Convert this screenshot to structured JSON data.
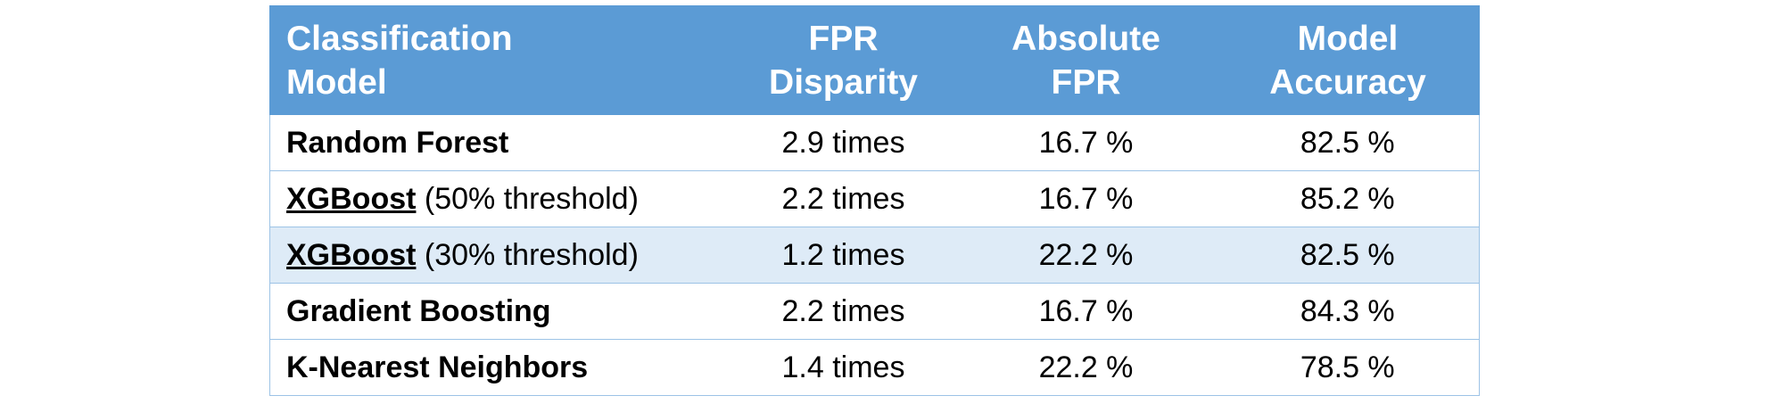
{
  "table": {
    "headers": [
      {
        "line1": "Classification",
        "line2": "Model"
      },
      {
        "line1": "FPR",
        "line2": "Disparity"
      },
      {
        "line1": "Absolute",
        "line2": "FPR"
      },
      {
        "line1": "Model",
        "line2": "Accuracy"
      }
    ],
    "rows": [
      {
        "model": "Random Forest",
        "note": "",
        "fpr_disparity": "2.9 times",
        "absolute_fpr": "16.7 %",
        "accuracy": "82.5 %"
      },
      {
        "model": "XGBoost",
        "note": " (50% threshold)",
        "fpr_disparity": "2.2 times",
        "absolute_fpr": "16.7 %",
        "accuracy": "85.2 %"
      },
      {
        "model": "XGBoost",
        "note": " (30% threshold)",
        "fpr_disparity": "1.2 times",
        "absolute_fpr": "22.2 %",
        "accuracy": "82.5 %"
      },
      {
        "model": "Gradient Boosting",
        "note": "",
        "fpr_disparity": "2.2 times",
        "absolute_fpr": "16.7 %",
        "accuracy": "84.3 %"
      },
      {
        "model": "K-Nearest Neighbors",
        "note": "",
        "fpr_disparity": "1.4 times",
        "absolute_fpr": "22.2 %",
        "accuracy": "78.5 %"
      }
    ],
    "colors": {
      "header_bg": "#5b9bd5",
      "header_text": "#ffffff",
      "row_shade": "#deebf7",
      "border": "#9dc3e6"
    }
  }
}
